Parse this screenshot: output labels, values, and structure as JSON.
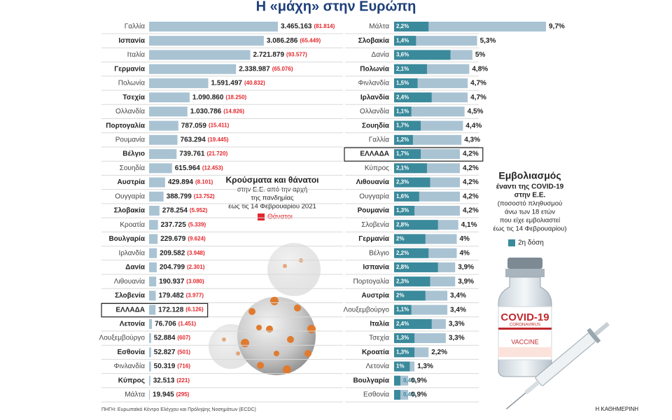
{
  "title": "Η «μάχη» στην Ευρώπη",
  "source": "ΠΗΓΗ: Ευρωπαϊκό Κέντρο Ελέγχου και Πρόληψης Νοσημάτων (ECDC)",
  "credit": "Η ΚΑΘΗΜΕΡΙΝΗ",
  "vial": {
    "label": "COVID-19",
    "sub": "CORONAVIRUS",
    "text": "VACCINE"
  },
  "chart_data": [
    {
      "type": "bar",
      "orientation": "horizontal",
      "title": "Κρούσματα και θάνατοι",
      "subtitle": [
        "στην Ε.Ε. από την αρχή",
        "της πανδημίας",
        "έως τις 14 Φεβρουαρίου 2021"
      ],
      "categories": [
        "Γαλλία",
        "Ισπανία",
        "Ιταλία",
        "Γερμανία",
        "Πολωνία",
        "Τσεχία",
        "Ολλανδία",
        "Πορτογαλία",
        "Ρουμανία",
        "Βέλγιο",
        "Σουηδία",
        "Αυστρία",
        "Ουγγαρία",
        "Σλοβακία",
        "Κροατία",
        "Βουλγαρία",
        "Ιρλανδία",
        "Δανία",
        "Λιθουανία",
        "Σλοβενία",
        "ΕΛΛΑΔΑ",
        "Λετονία",
        "Λουξεμβούργο",
        "Εσθονία",
        "Φινλανδία",
        "Κύπρος",
        "Μάλτα"
      ],
      "values": [
        3465163,
        3086286,
        2721879,
        2338987,
        1591497,
        1090860,
        1030786,
        787059,
        763294,
        739761,
        615964,
        429894,
        388799,
        278254,
        237725,
        229679,
        209582,
        204799,
        190937,
        179482,
        172128,
        76706,
        52884,
        52827,
        50319,
        32513,
        19945
      ],
      "value_labels": [
        "3.465.163",
        "3.086.286",
        "2.721.879",
        "2.338.987",
        "1.591.497",
        "1.090.860",
        "1.030.786",
        "787.059",
        "763.294",
        "739.761",
        "615.964",
        "429.894",
        "388.799",
        "278.254",
        "237.725",
        "229.679",
        "209.582",
        "204.799",
        "190.937",
        "179.482",
        "172.128",
        "76.706",
        "52.884",
        "52.827",
        "50.319",
        "32.513",
        "19.945"
      ],
      "color": "#a9c3d3",
      "highlight": 20,
      "deaths": {
        "name": "Θάνατοι",
        "color": "#e3262b",
        "values": [
          81814,
          65449,
          93577,
          65076,
          40832,
          18250,
          14826,
          15411,
          19445,
          21720,
          12453,
          8101,
          13752,
          5952,
          5339,
          9624,
          3948,
          2301,
          3080,
          3977,
          6126,
          1451,
          607,
          501,
          716,
          221,
          295
        ],
        "value_labels": [
          "(81.814)",
          "(65.449)",
          "(93.577)",
          "(65.076)",
          "(40.832)",
          "(18.250)",
          "(14.826)",
          "(15.411)",
          "(19.445)",
          "(21.720)",
          "(12.453)",
          "(8.101)",
          "(13.752)",
          "(5.952)",
          "(5.339)",
          "(9.624)",
          "(3.948)",
          "(2.301)",
          "(3.080)",
          "(3.977)",
          "(6.126)",
          "(1.451)",
          "(607)",
          "(501)",
          "(716)",
          "(221)",
          "(295)"
        ]
      }
    },
    {
      "type": "bar",
      "orientation": "horizontal",
      "title": "Εμβολιασμός",
      "subtitle": [
        "έναντι της COVID-19",
        "στην Ε.Ε."
      ],
      "note": [
        "(ποσοστό πληθυσμού",
        "άνω των 18 ετών",
        "που είχε εμβολιαστεί",
        "έως τις 14 Φεβρουαρίου)"
      ],
      "categories": [
        "Μάλτα",
        "Σλοβακία",
        "Δανία",
        "Πολωνία",
        "Φινλανδία",
        "Ιρλανδία",
        "Ολλανδία",
        "Σουηδία",
        "Γαλλία",
        "ΕΛΛΑΔΑ",
        "Κύπρος",
        "Λιθουανία",
        "Ουγγαρία",
        "Ρουμανία",
        "Σλοβενία",
        "Γερμανία",
        "Βέλγιο",
        "Ισπανία",
        "Πορτογαλία",
        "Αυστρία",
        "Λουξεμβούργο",
        "Ιταλία",
        "Τσεχία",
        "Κροατία",
        "Λετονία",
        "Βουλγαρία",
        "Εσθονία"
      ],
      "values": [
        9.7,
        5.3,
        5,
        4.8,
        4.7,
        4.7,
        4.5,
        4.4,
        4.3,
        4.2,
        4.2,
        4.2,
        4.2,
        4.2,
        4.1,
        4,
        4,
        3.9,
        3.9,
        3.4,
        3.4,
        3.3,
        3.3,
        2.2,
        1.3,
        0.9,
        0.9
      ],
      "value_labels": [
        "9,7%",
        "5,3%",
        "5%",
        "4,8%",
        "4,7%",
        "4,7%",
        "4,5%",
        "4,4%",
        "4,3%",
        "4,2%",
        "4,2%",
        "4,2%",
        "4,2%",
        "4,2%",
        "4,1%",
        "4%",
        "4%",
        "3,9%",
        "3,9%",
        "3,4%",
        "3,4%",
        "3,3%",
        "3,3%",
        "2,2%",
        "1,3%",
        "0,9%",
        "0,9%"
      ],
      "color": "#a9c3d3",
      "highlight": 9,
      "second_dose": {
        "name": "2η δόση",
        "color": "#3a8a9b",
        "values": [
          2.2,
          1.4,
          3.6,
          2.1,
          1.5,
          2.4,
          1.1,
          1.7,
          1.2,
          1.7,
          2.1,
          2.3,
          1.6,
          1.3,
          2.8,
          2,
          2.2,
          2.8,
          2.3,
          2,
          1.1,
          2.4,
          1.3,
          1.3,
          1,
          0.4,
          0.4
        ],
        "value_labels": [
          "2,2%",
          "1,4%",
          "3,6%",
          "2,1%",
          "1,5%",
          "2,4%",
          "1,1%",
          "1,7%",
          "1,2%",
          "1,7%",
          "2,1%",
          "2,3%",
          "1,6%",
          "1,3%",
          "2,8%",
          "2%",
          "2,2%",
          "2,8%",
          "2,3%",
          "2%",
          "1,1%",
          "2,4%",
          "1,3%",
          "1,3%",
          "1%",
          "0,4%",
          "0,4%"
        ]
      }
    }
  ]
}
